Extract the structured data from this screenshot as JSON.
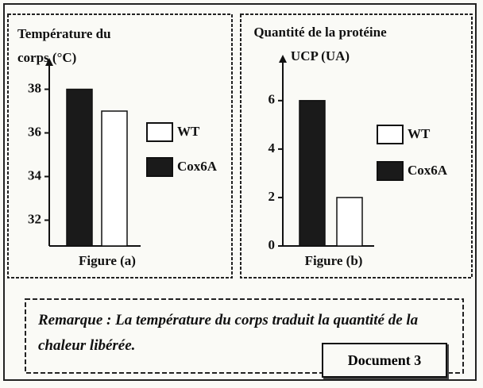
{
  "chart_data": [
    {
      "type": "bar",
      "ylabel": "Température du corps (°C)",
      "xlabel": "Figure (a)",
      "series": [
        {
          "name": "WT",
          "color": "#ffffff",
          "values": [
            37
          ]
        },
        {
          "name": "Cox6A",
          "color": "#1a1a1a",
          "values": [
            38
          ]
        }
      ],
      "ylim": [
        31,
        39
      ],
      "yticks": [
        32,
        34,
        36,
        38
      ]
    },
    {
      "type": "bar",
      "ylabel": "Quantité de la protéine UCP (UA)",
      "xlabel": "Figure (b)",
      "series": [
        {
          "name": "WT",
          "color": "#ffffff",
          "values": [
            2
          ]
        },
        {
          "name": "Cox6A",
          "color": "#1a1a1a",
          "values": [
            6
          ]
        }
      ],
      "ylim": [
        0,
        7.5
      ],
      "yticks": [
        0,
        2,
        4,
        6
      ]
    }
  ],
  "remark": "Remarque : La température du corps traduit la quantité de la chaleur libérée.",
  "document_label": "Document 3"
}
